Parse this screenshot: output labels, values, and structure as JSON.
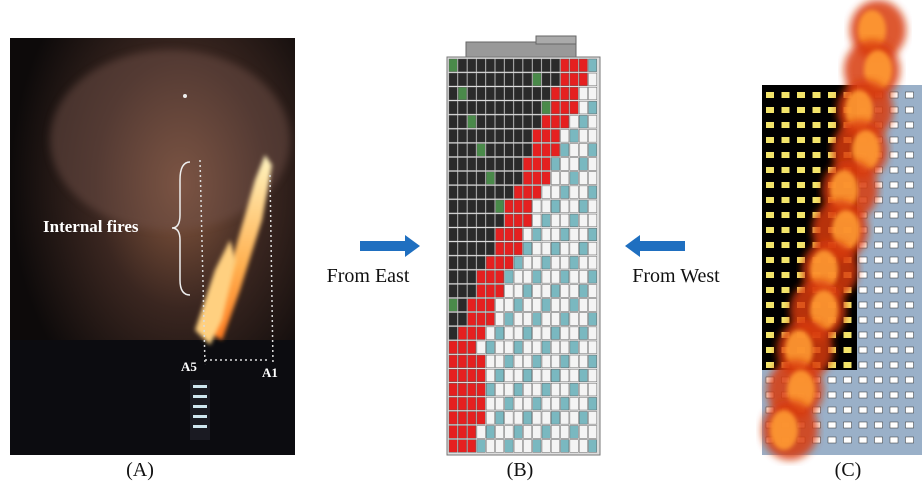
{
  "panels": [
    {
      "label": "(A)",
      "annotation": "Internal fires",
      "markers": [
        "A5",
        "A1"
      ]
    },
    {
      "label": "(B)"
    },
    {
      "label": "(C)"
    }
  ],
  "arrows": [
    {
      "text": "From East"
    },
    {
      "text": "From West"
    }
  ]
}
